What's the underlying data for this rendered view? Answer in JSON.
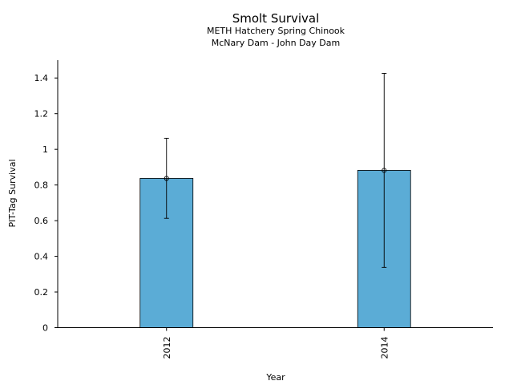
{
  "chart_data": {
    "type": "bar",
    "title": "Smolt Survival",
    "subtitle": [
      "METH Hatchery Spring Chinook",
      "McNary Dam - John Day Dam"
    ],
    "xlabel": "Year",
    "ylabel": "PIT-Tag Survival",
    "categories": [
      "2012",
      "2014"
    ],
    "values": [
      0.837,
      0.882
    ],
    "error_low": [
      0.613,
      0.338
    ],
    "error_high": [
      1.062,
      1.426
    ],
    "ylim": [
      0,
      1.5
    ],
    "yticks": [
      0,
      0.2,
      0.4,
      0.6,
      0.8,
      1,
      1.2,
      1.4
    ],
    "ytick_labels": [
      "0",
      "0.2",
      "0.4",
      "0.6",
      "0.8",
      "1",
      "1.2",
      "1.4"
    ],
    "bar_color": "#5bacd6",
    "grid": false,
    "legend": "none"
  }
}
